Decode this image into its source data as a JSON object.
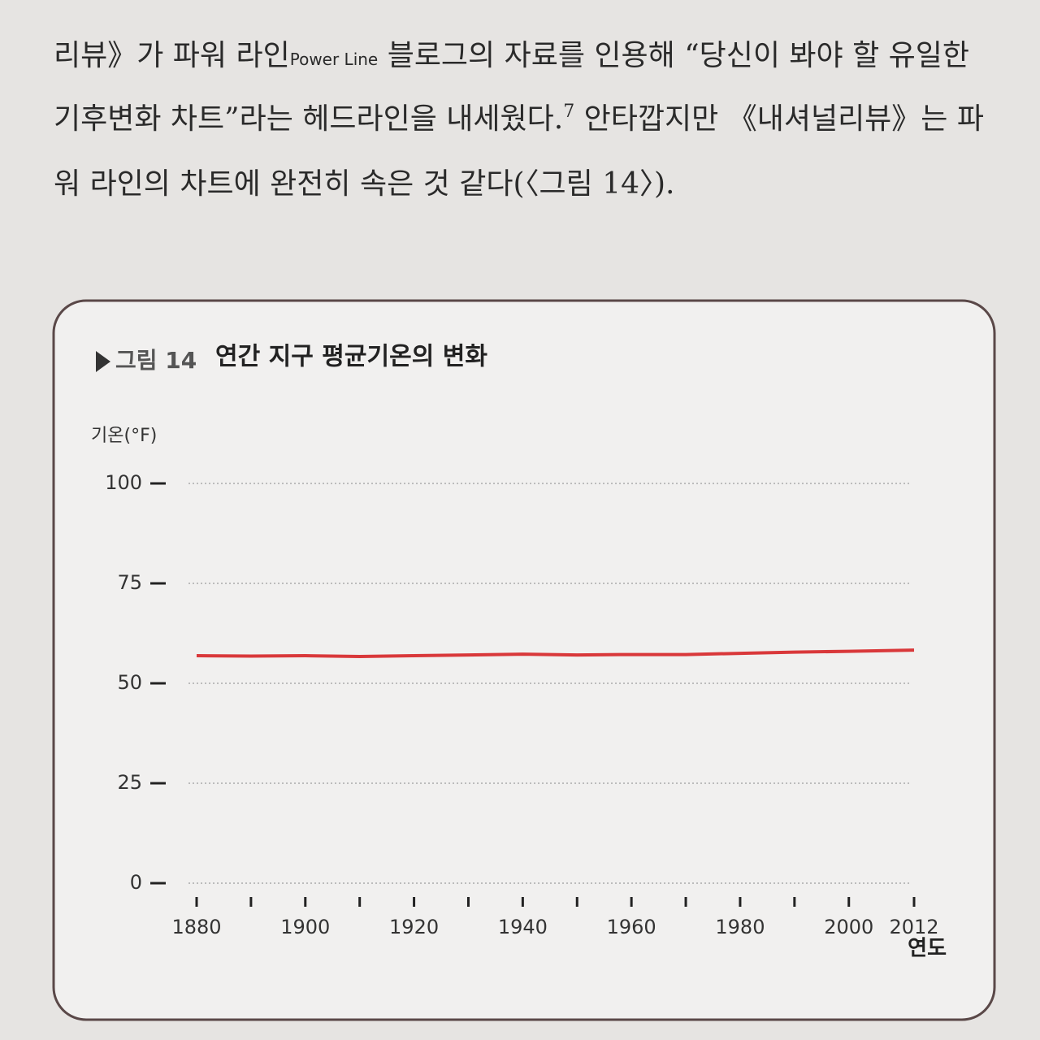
{
  "text": {
    "lines": [
      {
        "a": "리뷰》가 파워 라인",
        "small": "Power Line",
        "b": " 블로그의 자료를 인용해 “당신이 봐야 할 유일한"
      },
      {
        "a": "기후변화 차트”라는 헤드라인을 내세웠다.",
        "sup": "7",
        "b": " 안타깝지만 《내셔널리뷰》는 파"
      },
      {
        "a": "워 라인의 차트에 완전히 속은 것 같다(〈그림 14〉)."
      }
    ]
  },
  "chart_data": {
    "type": "line",
    "figure_label": "그림 14",
    "title": "연간 지구 평균기온의 변화",
    "y_label": "기온(°F)",
    "x_label": "연도",
    "x": [
      1880,
      1890,
      1900,
      1910,
      1920,
      1930,
      1940,
      1950,
      1960,
      1970,
      1980,
      1990,
      2000,
      2012
    ],
    "values": [
      56.9,
      56.8,
      56.9,
      56.7,
      56.9,
      57.1,
      57.3,
      57.1,
      57.2,
      57.2,
      57.5,
      57.8,
      58.0,
      58.3
    ],
    "color": "#d9383a",
    "xlim": [
      1880,
      2012
    ],
    "xticks": [
      1880,
      1900,
      1920,
      1940,
      1960,
      1980,
      2000,
      2012
    ],
    "xminorticks": [
      1890,
      1910,
      1930,
      1950,
      1970,
      1990
    ],
    "ylim": [
      0,
      100
    ],
    "yticks": [
      0,
      25,
      50,
      75,
      100
    ],
    "grid": true
  }
}
